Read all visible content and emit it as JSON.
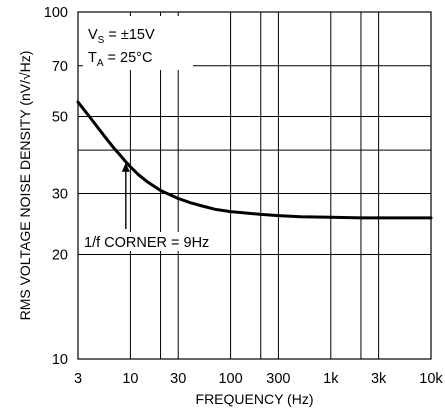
{
  "chart_data": {
    "type": "line",
    "xlabel": "FREQUENCY (Hz)",
    "ylabel": "RMS VOLTAGE NOISE DENSITY (nV/√Hz)",
    "x_scale": "log",
    "y_scale": "log",
    "xlim": [
      3,
      10000
    ],
    "ylim": [
      10,
      100
    ],
    "x_ticks": [
      {
        "value": 3,
        "label": "3"
      },
      {
        "value": 10,
        "label": "10"
      },
      {
        "value": 30,
        "label": "30"
      },
      {
        "value": 100,
        "label": "100"
      },
      {
        "value": 300,
        "label": "300"
      },
      {
        "value": 1000,
        "label": "1k"
      },
      {
        "value": 3000,
        "label": "3k"
      },
      {
        "value": 10000,
        "label": "10k"
      }
    ],
    "y_ticks": [
      {
        "value": 10,
        "label": "10"
      },
      {
        "value": 20,
        "label": "20"
      },
      {
        "value": 30,
        "label": "30"
      },
      {
        "value": 50,
        "label": "50"
      },
      {
        "value": 70,
        "label": "70"
      },
      {
        "value": 100,
        "label": "100"
      }
    ],
    "x_minor_grid": [
      20,
      200,
      2000
    ],
    "y_minor_grid": [
      40
    ],
    "grid": true,
    "series": [
      {
        "x": [
          3,
          4,
          5,
          6,
          7,
          8,
          9,
          10,
          12,
          15,
          20,
          30,
          40,
          50,
          70,
          100,
          200,
          300,
          500,
          1000,
          2000,
          5000,
          10000
        ],
        "y": [
          55,
          49.5,
          45.5,
          42.5,
          40.2,
          38.5,
          37.0,
          35.8,
          34.0,
          32.3,
          30.6,
          29.0,
          28.2,
          27.7,
          27.0,
          26.6,
          26.1,
          25.9,
          25.7,
          25.6,
          25.5,
          25.5,
          25.5
        ]
      }
    ],
    "annotations": {
      "conditions": {
        "vs_main": "V",
        "vs_sub": "S",
        "vs_rest": " = ±15V",
        "ta_main": "T",
        "ta_sub": "A",
        "ta_rest": " = 25°C"
      },
      "corner": {
        "text": "1/f CORNER = 9Hz",
        "arrow_x": 9,
        "arrow_y": 37.5
      }
    }
  }
}
